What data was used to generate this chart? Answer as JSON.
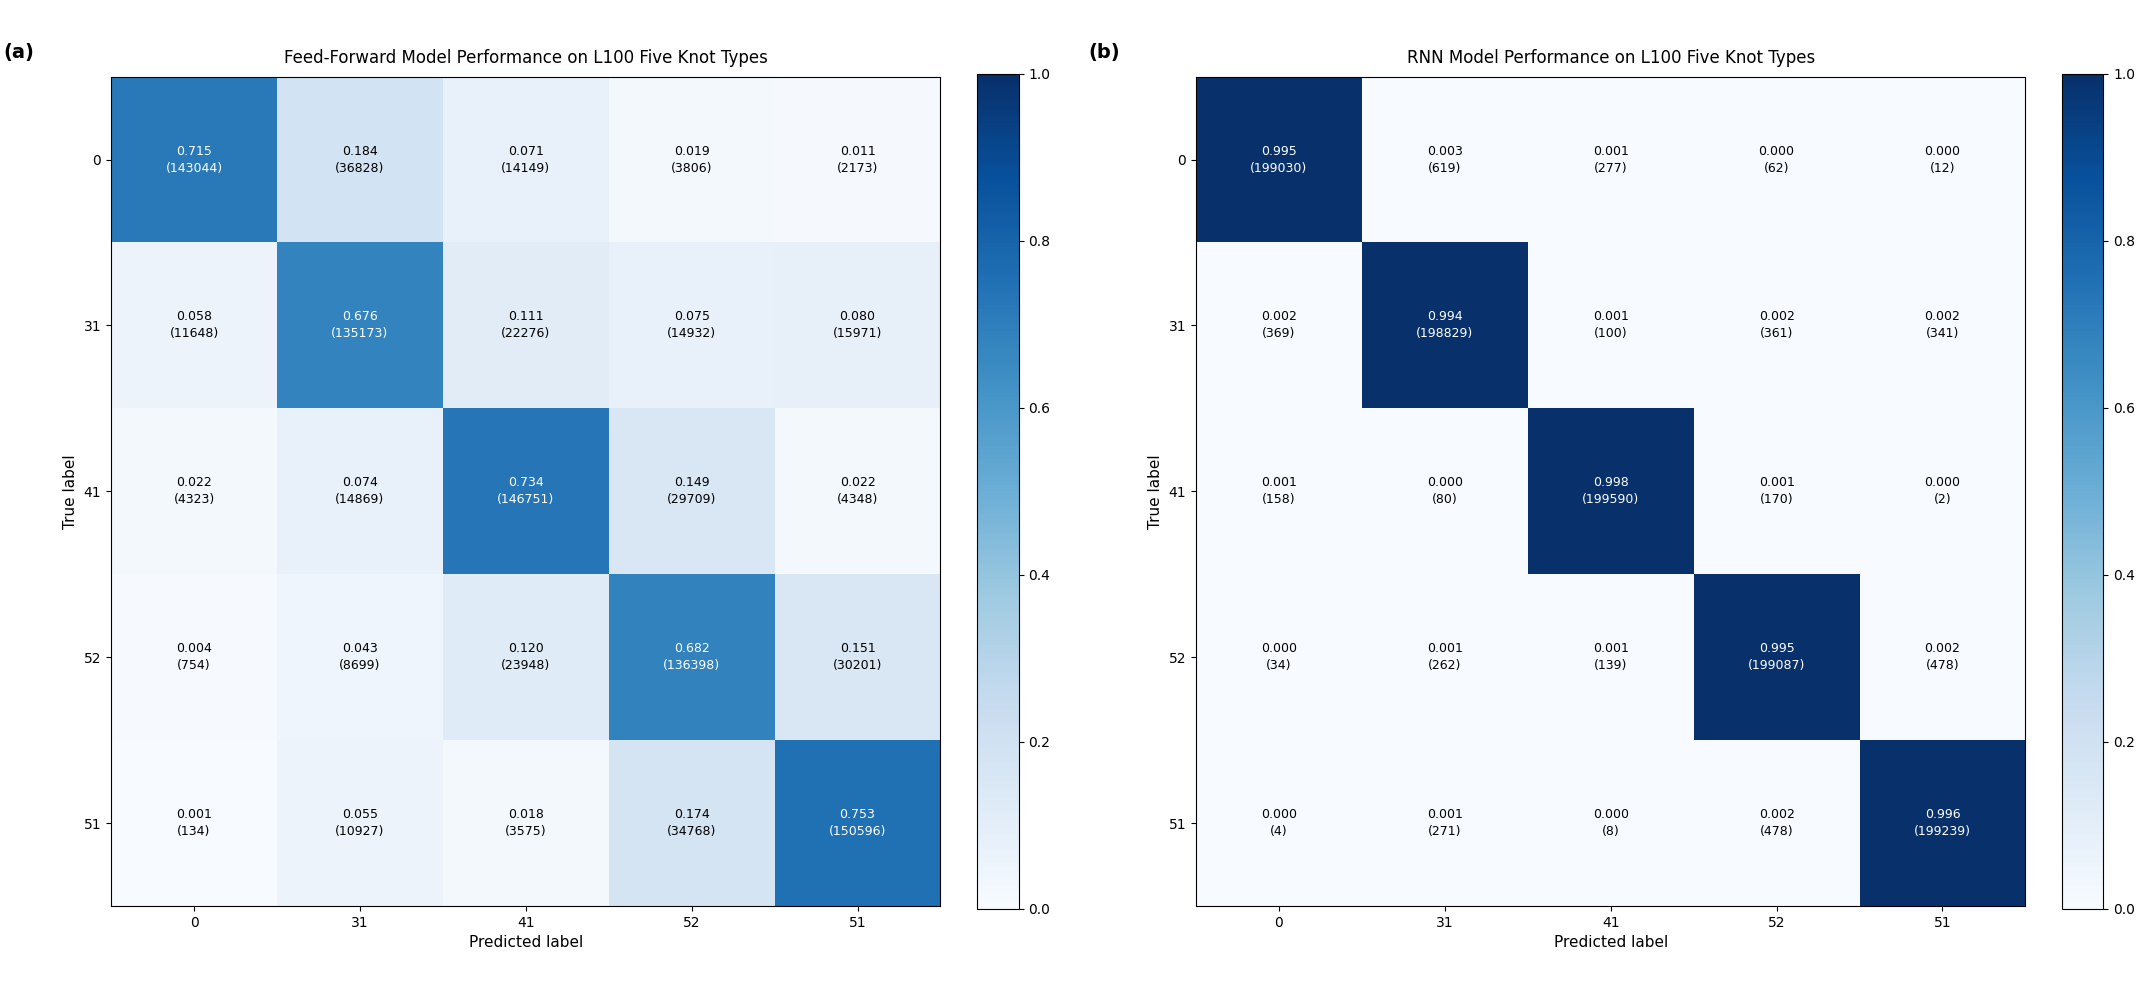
{
  "ff_title": "Feed-Forward Model Performance on L100 Five Knot Types",
  "rnn_title": "RNN Model Performance on L100 Five Knot Types",
  "labels": [
    0,
    31,
    41,
    52,
    51
  ],
  "ff_matrix": [
    [
      0.715,
      0.184,
      0.071,
      0.019,
      0.011
    ],
    [
      0.058,
      0.676,
      0.111,
      0.075,
      0.08
    ],
    [
      0.022,
      0.074,
      0.734,
      0.149,
      0.022
    ],
    [
      0.004,
      0.043,
      0.12,
      0.682,
      0.151
    ],
    [
      0.001,
      0.055,
      0.018,
      0.174,
      0.753
    ]
  ],
  "ff_counts": [
    [
      143044,
      36828,
      14149,
      3806,
      2173
    ],
    [
      11648,
      135173,
      22276,
      14932,
      15971
    ],
    [
      4323,
      14869,
      146751,
      29709,
      4348
    ],
    [
      754,
      8699,
      23948,
      136398,
      30201
    ],
    [
      134,
      10927,
      3575,
      34768,
      150596
    ]
  ],
  "rnn_matrix": [
    [
      0.995,
      0.003,
      0.001,
      0.0,
      0.0
    ],
    [
      0.002,
      0.994,
      0.001,
      0.002,
      0.002
    ],
    [
      0.001,
      0.0,
      0.998,
      0.001,
      0.0
    ],
    [
      0.0,
      0.001,
      0.001,
      0.995,
      0.002
    ],
    [
      0.0,
      0.001,
      0.0,
      0.002,
      0.996
    ]
  ],
  "rnn_counts": [
    [
      199030,
      619,
      277,
      62,
      12
    ],
    [
      369,
      198829,
      100,
      361,
      341
    ],
    [
      158,
      80,
      199590,
      170,
      2
    ],
    [
      34,
      262,
      139,
      199087,
      478
    ],
    [
      4,
      271,
      8,
      478,
      199239
    ]
  ],
  "xlabel": "Predicted label",
  "ylabel": "True label",
  "cmap": "Blues",
  "vmin": 0.0,
  "vmax": 1.0,
  "label_a": "(a)",
  "label_b": "(b)",
  "fig_width": 21.56,
  "fig_height": 9.92,
  "dpi": 100,
  "title_fontsize": 12,
  "tick_fontsize": 10,
  "annot_fontsize": 9,
  "axis_label_fontsize": 11,
  "panel_label_fontsize": 14,
  "cbar_tick_fontsize": 10,
  "white_threshold": 0.5
}
